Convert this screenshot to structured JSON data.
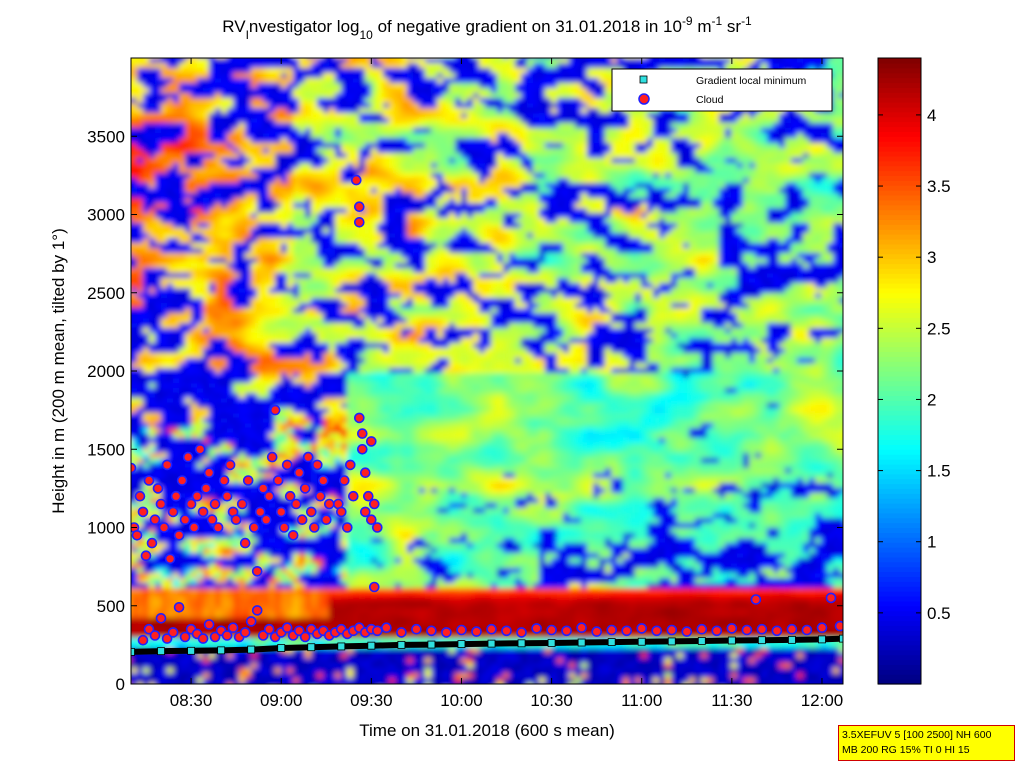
{
  "chart_data": {
    "type": "heatmap",
    "title": {
      "parts": [
        {
          "t": "RV",
          "s": "n"
        },
        {
          "t": "I",
          "s": "sub"
        },
        {
          "t": "nvestigator log",
          "s": "n"
        },
        {
          "t": "10",
          "s": "sub"
        },
        {
          "t": " of negative gradient on 31.01.2018 in 10",
          "s": "n"
        },
        {
          "t": "-9",
          "s": "sup"
        },
        {
          "t": " m",
          "s": "n"
        },
        {
          "t": "-1",
          "s": "sup"
        },
        {
          "t": " sr",
          "s": "n"
        },
        {
          "t": "-1",
          "s": "sup"
        }
      ]
    },
    "xlabel": "Time on 31.01.2018 (600 s mean)",
    "ylabel": "Height in m (200 m mean, tilted by 1°)",
    "x_ticks": [
      "08:30",
      "09:00",
      "09:30",
      "10:00",
      "10:30",
      "11:00",
      "11:30",
      "12:00"
    ],
    "x_tick_minutes": [
      510,
      540,
      570,
      600,
      630,
      660,
      690,
      720
    ],
    "xlim_minutes": [
      490,
      727
    ],
    "y_ticks": [
      0,
      500,
      1000,
      1500,
      2000,
      2500,
      3000,
      3500
    ],
    "ylim": [
      0,
      4000
    ],
    "colorbar": {
      "ticks": [
        0.5,
        1,
        1.5,
        2,
        2.5,
        3,
        3.5,
        4
      ],
      "tick_labels": [
        "0.5",
        "1",
        "1.5",
        "2",
        "2.5",
        "3",
        "3.5",
        "4"
      ],
      "range": [
        0,
        4.4
      ],
      "colormap": "jet"
    },
    "legend": {
      "position": "top-right",
      "entries": [
        {
          "label": "Gradient local minimum",
          "marker": "square",
          "color": "#30e0e0"
        },
        {
          "label": "Cloud",
          "marker": "circle",
          "color": "#ff2020",
          "edge": "#2020ff"
        }
      ]
    },
    "series": [
      {
        "name": "Gradient local minimum",
        "points": [
          [
            490,
            205
          ],
          [
            500,
            210
          ],
          [
            510,
            212
          ],
          [
            520,
            215
          ],
          [
            530,
            220
          ],
          [
            540,
            230
          ],
          [
            550,
            235
          ],
          [
            560,
            240
          ],
          [
            570,
            245
          ],
          [
            580,
            250
          ],
          [
            590,
            252
          ],
          [
            600,
            255
          ],
          [
            610,
            258
          ],
          [
            620,
            260
          ],
          [
            630,
            262
          ],
          [
            640,
            265
          ],
          [
            650,
            268
          ],
          [
            660,
            270
          ],
          [
            670,
            272
          ],
          [
            680,
            275
          ],
          [
            690,
            278
          ],
          [
            700,
            280
          ],
          [
            710,
            282
          ],
          [
            720,
            285
          ],
          [
            727,
            290
          ]
        ]
      },
      {
        "name": "Cloud",
        "points": [
          [
            490,
            1380
          ],
          [
            491,
            1000
          ],
          [
            492,
            950
          ],
          [
            493,
            1200
          ],
          [
            494,
            1100
          ],
          [
            495,
            820
          ],
          [
            496,
            1300
          ],
          [
            497,
            900
          ],
          [
            498,
            1050
          ],
          [
            499,
            1250
          ],
          [
            500,
            1150
          ],
          [
            501,
            1000
          ],
          [
            502,
            1400
          ],
          [
            503,
            800
          ],
          [
            504,
            1100
          ],
          [
            505,
            1200
          ],
          [
            506,
            950
          ],
          [
            507,
            1300
          ],
          [
            508,
            1050
          ],
          [
            509,
            1450
          ],
          [
            510,
            1150
          ],
          [
            511,
            1000
          ],
          [
            512,
            1200
          ],
          [
            513,
            1500
          ],
          [
            514,
            1100
          ],
          [
            515,
            1250
          ],
          [
            516,
            1350
          ],
          [
            517,
            1050
          ],
          [
            518,
            1150
          ],
          [
            519,
            1000
          ],
          [
            521,
            1300
          ],
          [
            522,
            1200
          ],
          [
            523,
            1400
          ],
          [
            524,
            1100
          ],
          [
            525,
            1050
          ],
          [
            527,
            1150
          ],
          [
            528,
            900
          ],
          [
            529,
            1300
          ],
          [
            531,
            1000
          ],
          [
            532,
            720
          ],
          [
            533,
            1100
          ],
          [
            534,
            1250
          ],
          [
            535,
            1050
          ],
          [
            536,
            1200
          ],
          [
            537,
            1450
          ],
          [
            538,
            1750
          ],
          [
            539,
            1300
          ],
          [
            540,
            1100
          ],
          [
            541,
            1000
          ],
          [
            542,
            1400
          ],
          [
            543,
            1200
          ],
          [
            544,
            950
          ],
          [
            545,
            1150
          ],
          [
            546,
            1350
          ],
          [
            547,
            1050
          ],
          [
            548,
            1250
          ],
          [
            549,
            1450
          ],
          [
            550,
            1100
          ],
          [
            551,
            1000
          ],
          [
            552,
            1400
          ],
          [
            553,
            1200
          ],
          [
            554,
            1300
          ],
          [
            555,
            1050
          ],
          [
            556,
            1150
          ],
          [
            559,
            1150
          ],
          [
            560,
            1100
          ],
          [
            561,
            1300
          ],
          [
            562,
            1000
          ],
          [
            563,
            1400
          ],
          [
            564,
            1200
          ],
          [
            565,
            3220
          ],
          [
            566,
            3050
          ],
          [
            566,
            2950
          ],
          [
            566,
            1700
          ],
          [
            567,
            1600
          ],
          [
            567,
            1500
          ],
          [
            568,
            1350
          ],
          [
            568,
            1100
          ],
          [
            569,
            1200
          ],
          [
            570,
            1550
          ],
          [
            570,
            1050
          ],
          [
            571,
            1150
          ],
          [
            571,
            620
          ],
          [
            572,
            1000
          ],
          [
            494,
            280
          ],
          [
            496,
            350
          ],
          [
            498,
            310
          ],
          [
            500,
            420
          ],
          [
            502,
            290
          ],
          [
            504,
            330
          ],
          [
            506,
            490
          ],
          [
            508,
            300
          ],
          [
            510,
            350
          ],
          [
            512,
            320
          ],
          [
            514,
            290
          ],
          [
            516,
            380
          ],
          [
            518,
            300
          ],
          [
            520,
            340
          ],
          [
            522,
            310
          ],
          [
            524,
            360
          ],
          [
            526,
            300
          ],
          [
            528,
            330
          ],
          [
            530,
            400
          ],
          [
            532,
            470
          ],
          [
            534,
            310
          ],
          [
            536,
            350
          ],
          [
            538,
            300
          ],
          [
            540,
            330
          ],
          [
            542,
            360
          ],
          [
            544,
            310
          ],
          [
            546,
            340
          ],
          [
            548,
            300
          ],
          [
            550,
            350
          ],
          [
            552,
            320
          ],
          [
            554,
            340
          ],
          [
            556,
            310
          ],
          [
            558,
            330
          ],
          [
            560,
            350
          ],
          [
            562,
            320
          ],
          [
            564,
            340
          ],
          [
            566,
            360
          ],
          [
            568,
            330
          ],
          [
            570,
            350
          ],
          [
            572,
            340
          ],
          [
            575,
            360
          ],
          [
            580,
            330
          ],
          [
            585,
            350
          ],
          [
            590,
            340
          ],
          [
            595,
            330
          ],
          [
            600,
            345
          ],
          [
            605,
            335
          ],
          [
            610,
            350
          ],
          [
            615,
            340
          ],
          [
            620,
            330
          ],
          [
            625,
            355
          ],
          [
            630,
            345
          ],
          [
            635,
            340
          ],
          [
            640,
            360
          ],
          [
            645,
            335
          ],
          [
            650,
            345
          ],
          [
            655,
            340
          ],
          [
            660,
            355
          ],
          [
            665,
            340
          ],
          [
            670,
            345
          ],
          [
            675,
            335
          ],
          [
            680,
            350
          ],
          [
            685,
            340
          ],
          [
            690,
            355
          ],
          [
            695,
            345
          ],
          [
            698,
            540
          ],
          [
            700,
            350
          ],
          [
            705,
            340
          ],
          [
            710,
            350
          ],
          [
            715,
            345
          ],
          [
            720,
            360
          ],
          [
            723,
            550
          ],
          [
            726,
            370
          ]
        ]
      }
    ]
  },
  "info_box": {
    "line1": "3.5XEFUV 5 [100 2500] NH 600",
    "line2": "MB 200 RG 15% TI 0 HI 15"
  }
}
